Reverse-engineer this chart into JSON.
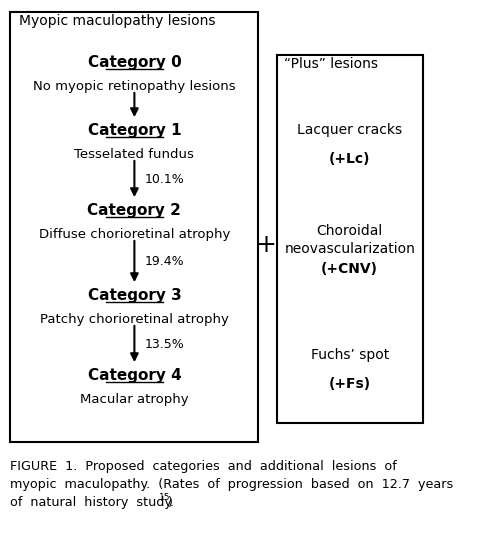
{
  "title": "Myopic maculopathy lesions",
  "plus_title": "“Plus” lesions",
  "categories": [
    {
      "label": "Category 0",
      "desc": "No myopic retinopathy lesions"
    },
    {
      "label": "Category 1",
      "desc": "Tesselated fundus"
    },
    {
      "label": "Category 2",
      "desc": "Diffuse chorioretinal atrophy"
    },
    {
      "label": "Category 3",
      "desc": "Patchy chorioretinal atrophy"
    },
    {
      "label": "Category 4",
      "desc": "Macular atrophy"
    }
  ],
  "progression_rates": [
    "10.1%",
    "19.4%",
    "13.5%"
  ],
  "plus_lesions": [
    {
      "name": "Lacquer cracks",
      "abbr": "(+Lc)"
    },
    {
      "name": "Choroidal\nneovascularization",
      "abbr": "(+CNV)"
    },
    {
      "name": "Fuchs’ spot",
      "abbr": "(+Fs)"
    }
  ],
  "plus_sign": "+",
  "caption": "FIGURE  1.  Proposed  categories  and  additional  lesions  of\nmyopic  maculopathy.  (Rates  of  progression  based  on  12.7  years\nof  natural  history  study.",
  "superscript": "15",
  "caption_end": ")",
  "bg_color": "#ffffff",
  "text_color": "#000000",
  "box_color": "#000000"
}
